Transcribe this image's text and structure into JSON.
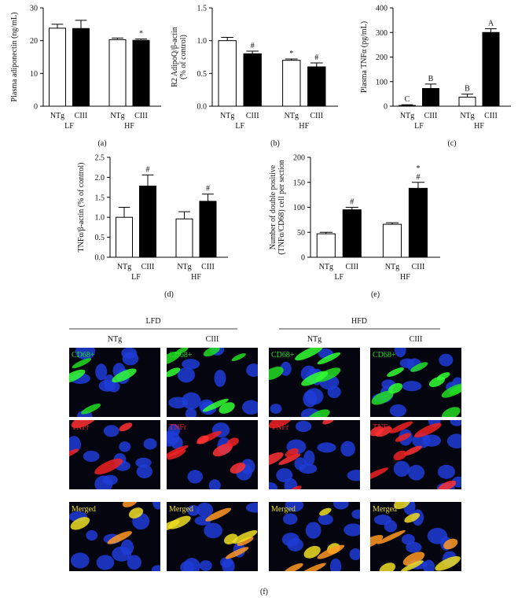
{
  "chart_data": [
    {
      "type": "bar",
      "ylabel": [
        "Plasma adiponectin (ng/mL)"
      ],
      "categories": [
        "NTg",
        "CIII",
        "NTg",
        "CIII"
      ],
      "groups": [
        "LF",
        "HF"
      ],
      "values": [
        23.8,
        23.7,
        20.3,
        20.1
      ],
      "errors": [
        1.2,
        2.5,
        0.5,
        0.4
      ],
      "colors": [
        "#ffffff",
        "#000000",
        "#ffffff",
        "#000000"
      ],
      "annotations": [
        null,
        null,
        null,
        [
          "*"
        ]
      ],
      "ylim": [
        0,
        30
      ],
      "yticks": [
        0,
        10,
        20,
        30
      ],
      "panel_label": "(a)"
    },
    {
      "type": "bar",
      "ylabel": [
        "R2 AdipoQ/β-actin",
        "(% of control)"
      ],
      "categories": [
        "NTg",
        "CIII",
        "NTg",
        "CIII"
      ],
      "groups": [
        "LF",
        "HF"
      ],
      "values": [
        1.0,
        0.8,
        0.7,
        0.6
      ],
      "errors": [
        0.05,
        0.04,
        0.02,
        0.06
      ],
      "colors": [
        "#ffffff",
        "#000000",
        "#ffffff",
        "#000000"
      ],
      "annotations": [
        null,
        [
          "#"
        ],
        [
          "*"
        ],
        [
          "#"
        ]
      ],
      "ylim": [
        0,
        1.5
      ],
      "yticks": [
        {
          "value": 0,
          "label": "0.0"
        },
        0.5,
        {
          "value": 1,
          "label": "1.0"
        },
        1.5
      ],
      "panel_label": "(b)"
    },
    {
      "type": "bar",
      "ylabel": [
        "Plasma TNFα (pg/mL)"
      ],
      "categories": [
        "NTg",
        "CIII",
        "NTg",
        "CIII"
      ],
      "groups": [
        "LF",
        "HF"
      ],
      "values": [
        3,
        72,
        37,
        300
      ],
      "errors": [
        3,
        18,
        12,
        15
      ],
      "colors": [
        "#ffffff",
        "#000000",
        "#ffffff",
        "#000000"
      ],
      "annotations": [
        [
          "C"
        ],
        [
          "B"
        ],
        [
          "B"
        ],
        [
          "A"
        ]
      ],
      "ylim": [
        0,
        400
      ],
      "yticks": [
        0,
        100,
        200,
        300,
        400
      ],
      "panel_label": "(c)"
    },
    {
      "type": "bar",
      "ylabel": [
        "TNFα/β-actin (% of control)"
      ],
      "categories": [
        "NTg",
        "CIII",
        "NTg",
        "CIII"
      ],
      "groups": [
        "LF",
        "HF"
      ],
      "values": [
        1.0,
        1.78,
        0.96,
        1.4
      ],
      "errors": [
        0.25,
        0.28,
        0.18,
        0.18
      ],
      "colors": [
        "#ffffff",
        "#000000",
        "#ffffff",
        "#000000"
      ],
      "annotations": [
        null,
        [
          "#"
        ],
        null,
        [
          "#"
        ]
      ],
      "ylim": [
        0,
        2.5
      ],
      "yticks": [
        {
          "value": 0,
          "label": "0.0"
        },
        0.5,
        {
          "value": 1,
          "label": "1.0"
        },
        1.5,
        {
          "value": 2,
          "label": "2.0"
        },
        2.5
      ],
      "panel_label": "(d)"
    },
    {
      "type": "bar",
      "ylabel": [
        "Number of double positive",
        "(TNFα/CD68) cell per section"
      ],
      "categories": [
        "NTg",
        "CIII",
        "NTg",
        "CIII"
      ],
      "groups": [
        "LF",
        "HF"
      ],
      "values": [
        47,
        95,
        66,
        138
      ],
      "errors": [
        3,
        5,
        3,
        12
      ],
      "colors": [
        "#ffffff",
        "#000000",
        "#ffffff",
        "#000000"
      ],
      "annotations": [
        null,
        [
          "#"
        ],
        null,
        [
          "*",
          "#"
        ]
      ],
      "ylim": [
        0,
        200
      ],
      "yticks": [
        0,
        50,
        100,
        150,
        200
      ],
      "panel_label": "(e)"
    }
  ],
  "image_panel": {
    "groups": [
      "LFD",
      "HFD"
    ],
    "columns": [
      "NTg",
      "CIII",
      "NTg",
      "CIII"
    ],
    "rows": [
      "CD68+",
      "TNFr",
      "Merged"
    ],
    "label": "(f)"
  }
}
